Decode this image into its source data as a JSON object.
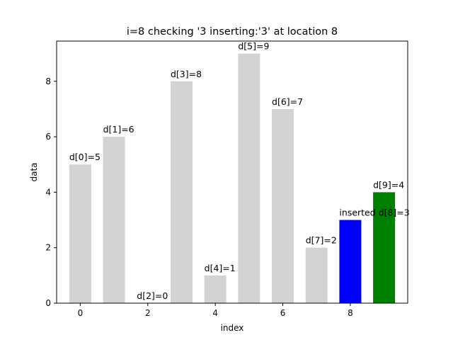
{
  "chart_data": {
    "type": "bar",
    "title": "i=8 checking '3  inserting:'3' at location 8",
    "xlabel": "index",
    "ylabel": "data",
    "xlim": [
      -0.7,
      9.7
    ],
    "ylim": [
      0,
      9.45
    ],
    "xticks": [
      0,
      2,
      4,
      6,
      8
    ],
    "yticks": [
      0,
      2,
      4,
      6,
      8
    ],
    "grid": false,
    "legend": "none",
    "x": [
      0,
      1,
      2,
      3,
      4,
      5,
      6,
      7,
      8,
      9
    ],
    "values": [
      5,
      6,
      0,
      8,
      1,
      9,
      7,
      2,
      3,
      4
    ],
    "bar_colors": [
      "#d3d3d3",
      "#d3d3d3",
      "#d3d3d3",
      "#d3d3d3",
      "#d3d3d3",
      "#d3d3d3",
      "#d3d3d3",
      "#d3d3d3",
      "#0000ff",
      "#008000"
    ],
    "bar_labels": [
      "d[0]=5",
      "d[1]=6",
      "d[2]=0",
      "d[3]=8",
      "d[4]=1",
      "d[5]=9",
      "d[6]=7",
      "d[7]=2",
      "inserted d[8]=3",
      "d[9]=4"
    ]
  }
}
